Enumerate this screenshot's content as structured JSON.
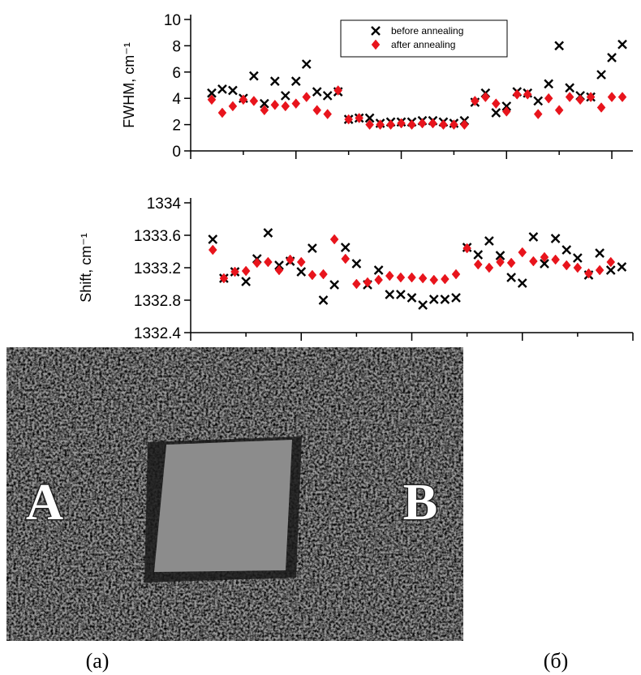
{
  "chart_data": [
    {
      "type": "scatter",
      "y_label": "FWHM, cm⁻¹",
      "ylim": [
        0,
        10
      ],
      "yticks": [
        0,
        2,
        4,
        6,
        8,
        10
      ],
      "xlim": [
        0,
        42
      ],
      "xticks": [
        0,
        5,
        10,
        15,
        20,
        25,
        30,
        35,
        40
      ],
      "legend": "top",
      "series": [
        {
          "name": "before annealing",
          "marker": "x",
          "color": "#000000",
          "x": [
            2,
            3,
            4,
            5,
            6,
            7,
            8,
            9,
            10,
            11,
            12,
            13,
            14,
            15,
            16,
            17,
            18,
            19,
            20,
            21,
            22,
            23,
            24,
            25,
            26,
            27,
            28,
            29,
            30,
            31,
            32,
            33,
            34,
            35,
            36,
            37,
            38,
            39,
            40,
            41
          ],
          "values": [
            4.4,
            4.7,
            4.6,
            4.0,
            5.7,
            3.6,
            5.3,
            4.2,
            5.3,
            6.6,
            4.5,
            4.2,
            4.5,
            2.4,
            2.5,
            2.5,
            2.1,
            2.2,
            2.2,
            2.2,
            2.3,
            2.3,
            2.2,
            2.1,
            2.3,
            3.7,
            4.4,
            2.9,
            3.4,
            4.5,
            4.4,
            3.8,
            5.1,
            8.0,
            4.8,
            4.2,
            4.1,
            5.8,
            7.1,
            8.1
          ]
        },
        {
          "name": "after annealing",
          "marker": "diamond",
          "color": "#e8141c",
          "x": [
            2,
            3,
            4,
            5,
            6,
            7,
            8,
            9,
            10,
            11,
            12,
            13,
            14,
            15,
            16,
            17,
            18,
            19,
            20,
            21,
            22,
            23,
            24,
            25,
            26,
            27,
            28,
            29,
            30,
            31,
            32,
            33,
            34,
            35,
            36,
            37,
            38,
            39,
            40,
            41
          ],
          "values": [
            3.9,
            2.9,
            3.4,
            3.9,
            3.8,
            3.1,
            3.5,
            3.4,
            3.6,
            4.1,
            3.1,
            2.8,
            4.6,
            2.4,
            2.5,
            2.0,
            2.0,
            2.0,
            2.1,
            2.0,
            2.1,
            2.1,
            2.0,
            2.0,
            2.0,
            3.8,
            4.1,
            3.6,
            3.0,
            4.3,
            4.3,
            2.8,
            4.0,
            3.1,
            4.1,
            3.9,
            4.1,
            3.3,
            4.1,
            4.1
          ]
        }
      ]
    },
    {
      "type": "scatter",
      "y_label": "Shift, cm⁻¹",
      "ylim": [
        1332.4,
        1334
      ],
      "yticks": [
        1332.4,
        1332.8,
        1333.2,
        1333.6,
        1334
      ],
      "xlim": [
        0,
        40
      ],
      "xticks": [
        0,
        5,
        10,
        15,
        20,
        25,
        30,
        35,
        40
      ],
      "series": [
        {
          "marker": "x",
          "color": "#000000",
          "x": [
            2,
            3,
            4,
            5,
            6,
            7,
            8,
            9,
            10,
            11,
            12,
            13,
            14,
            15,
            16,
            17,
            18,
            19,
            20,
            21,
            22,
            23,
            24,
            25,
            26,
            27,
            28,
            29,
            30,
            31,
            32,
            33,
            34,
            35,
            36,
            37,
            38,
            39
          ],
          "values": [
            1333.55,
            1333.07,
            1333.15,
            1333.03,
            1333.31,
            1333.63,
            1333.23,
            1333.28,
            1333.15,
            1333.44,
            1332.8,
            1332.99,
            1333.45,
            1333.25,
            1332.99,
            1333.17,
            1332.87,
            1332.87,
            1332.83,
            1332.74,
            1332.81,
            1332.81,
            1332.83,
            1333.45,
            1333.36,
            1333.53,
            1333.35,
            1333.08,
            1333.01,
            1333.58,
            1333.25,
            1333.56,
            1333.42,
            1333.32,
            1333.11,
            1333.38,
            1333.17,
            1333.21
          ]
        },
        {
          "marker": "diamond",
          "color": "#e8141c",
          "x": [
            2,
            3,
            4,
            5,
            6,
            7,
            8,
            9,
            10,
            11,
            12,
            13,
            14,
            15,
            16,
            17,
            18,
            19,
            20,
            21,
            22,
            23,
            24,
            25,
            26,
            27,
            28,
            29,
            30,
            31,
            32,
            33,
            34,
            35,
            36,
            37,
            38
          ],
          "values": [
            1333.42,
            1333.07,
            1333.15,
            1333.16,
            1333.26,
            1333.27,
            1333.17,
            1333.3,
            1333.27,
            1333.11,
            1333.12,
            1333.55,
            1333.31,
            1333.0,
            1333.02,
            1333.05,
            1333.1,
            1333.08,
            1333.08,
            1333.07,
            1333.05,
            1333.06,
            1333.12,
            1333.44,
            1333.24,
            1333.2,
            1333.27,
            1333.26,
            1333.39,
            1333.28,
            1333.33,
            1333.3,
            1333.23,
            1333.2,
            1333.13,
            1333.17,
            1333.27
          ]
        }
      ]
    }
  ],
  "photo": {
    "labels": [
      "A",
      "B"
    ]
  },
  "captions": [
    "(a)",
    "(б)"
  ]
}
